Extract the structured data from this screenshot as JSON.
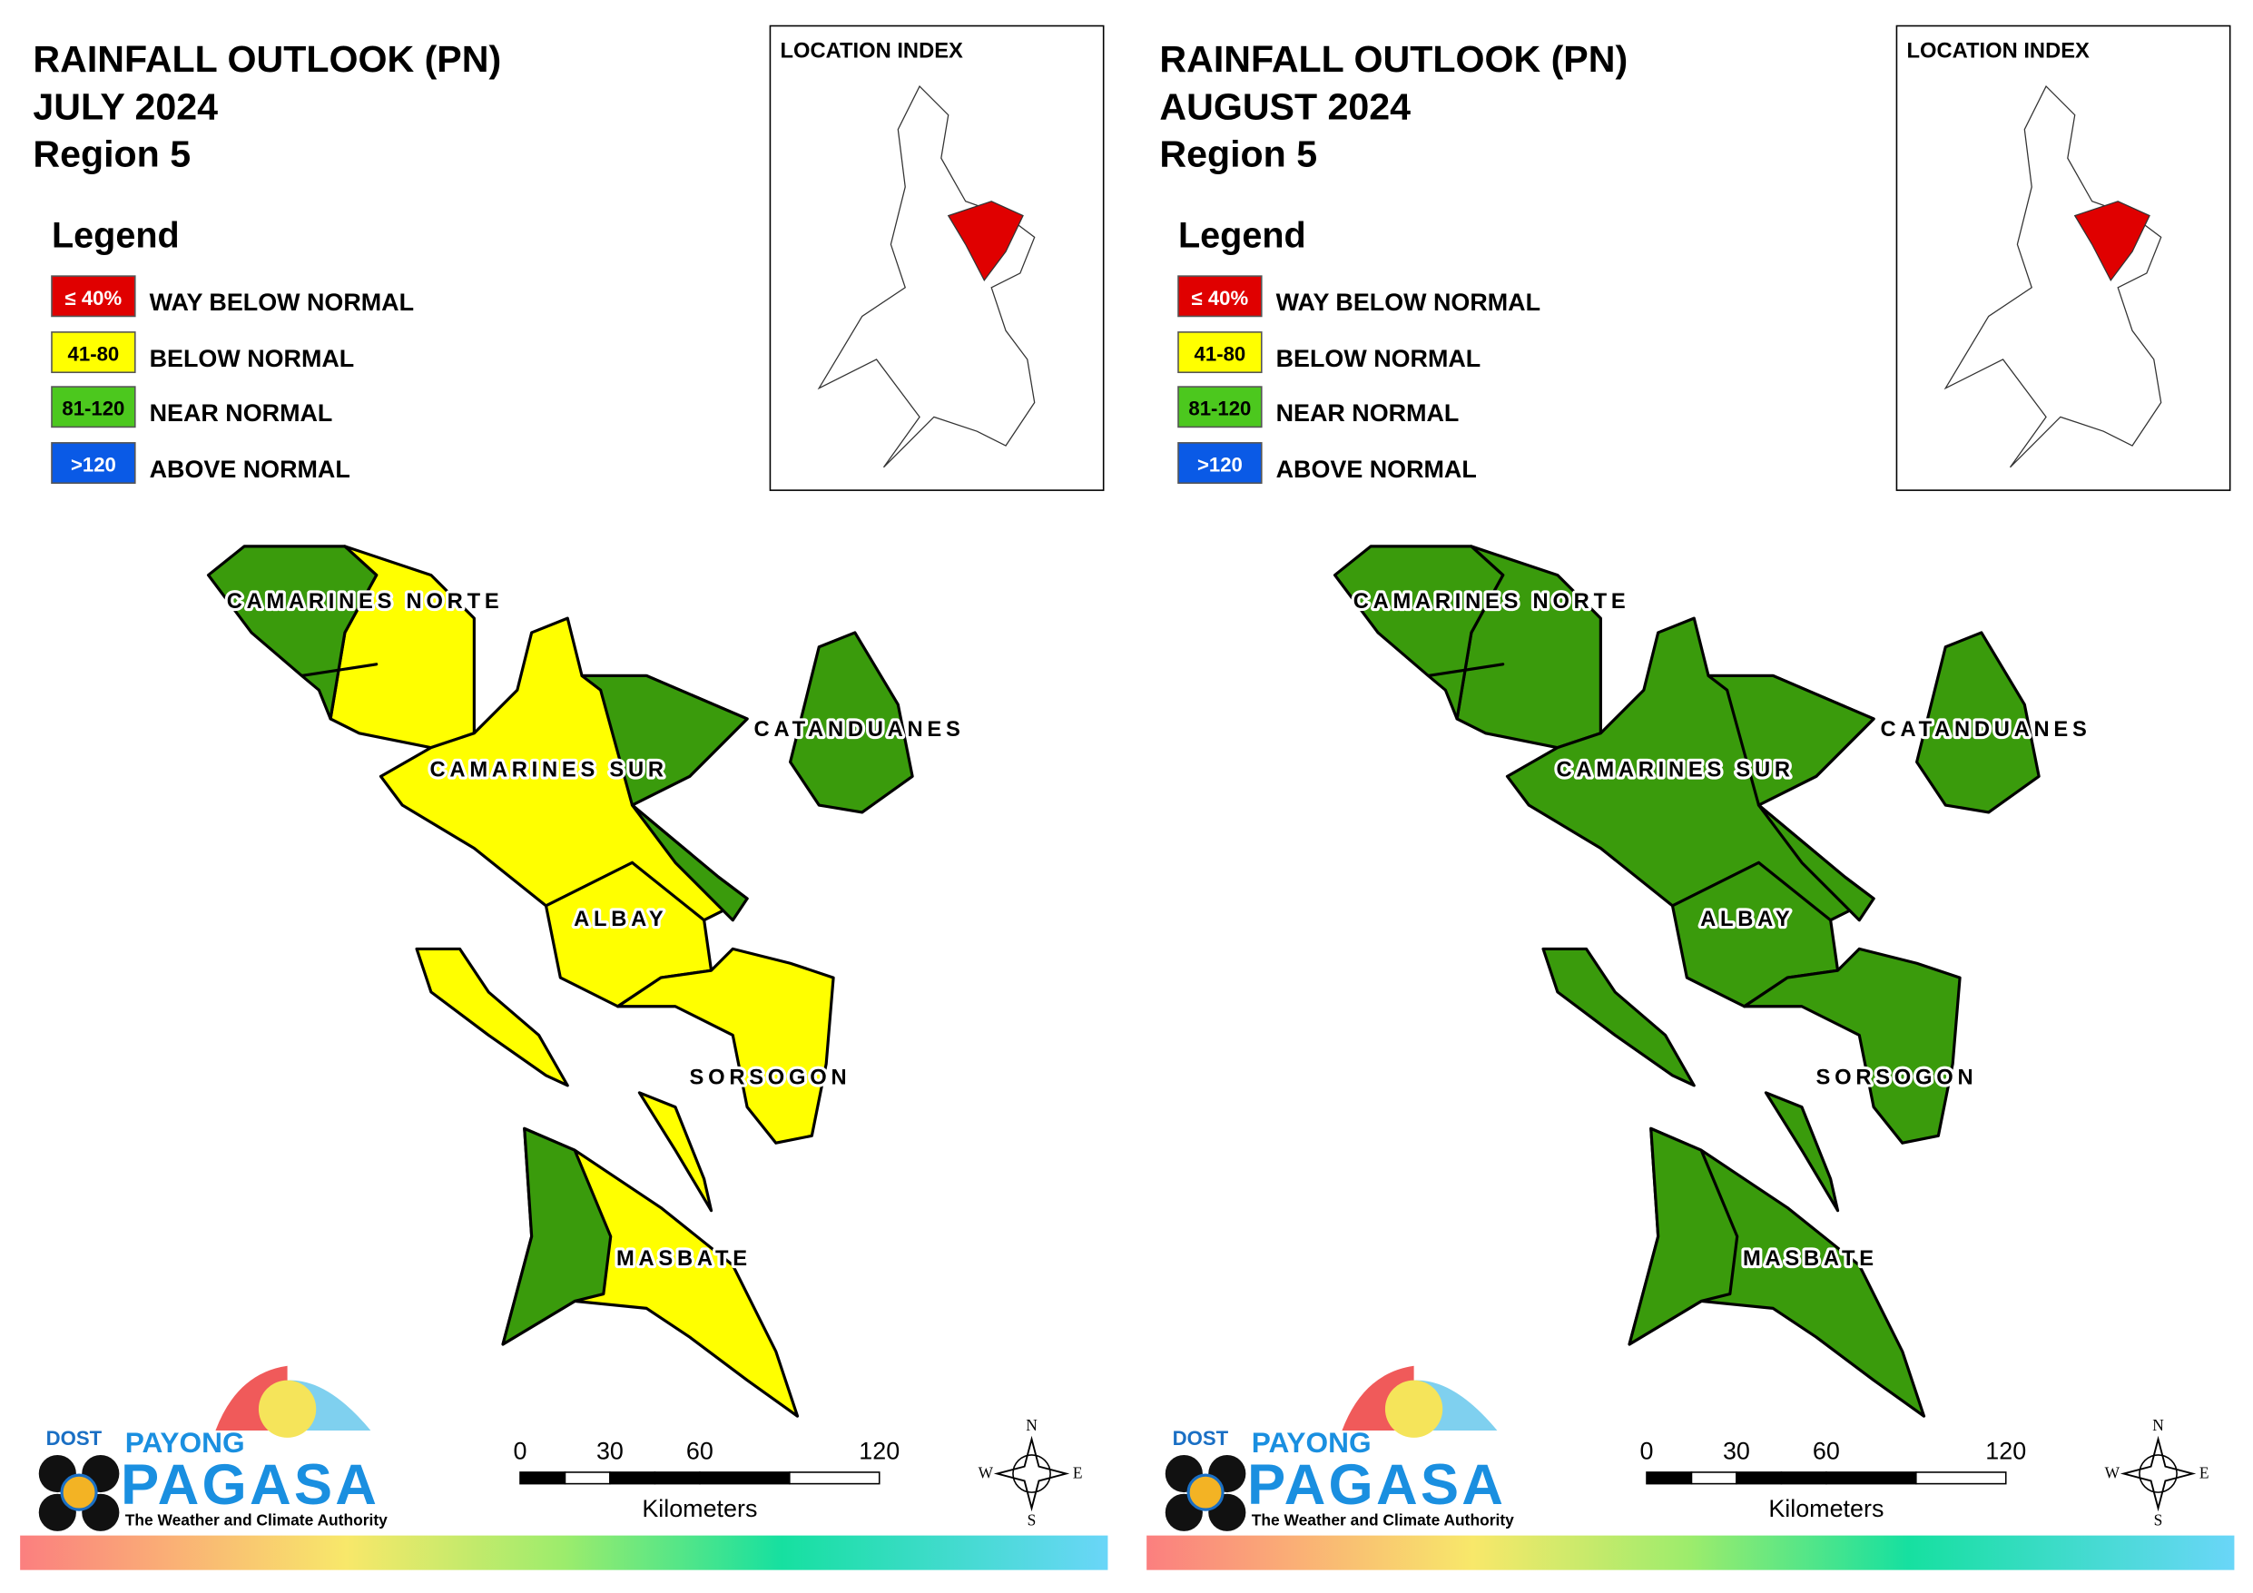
{
  "panels": [
    {
      "title": [
        "RAINFALL OUTLOOK (PN)",
        "JULY 2024",
        "Region 5"
      ],
      "legend_title": "Legend",
      "legend": [
        {
          "range": "≤ 40%",
          "label": "WAY BELOW NORMAL",
          "color": "#e00000"
        },
        {
          "range": "41-80",
          "label": "BELOW NORMAL",
          "color": "#ffff00"
        },
        {
          "range": "81-120",
          "label": "NEAR NORMAL",
          "color": "#4cc81e"
        },
        {
          "range": ">120",
          "label": "ABOVE NORMAL",
          "color": "#0a5ae6"
        }
      ],
      "location_index": "LOCATION INDEX",
      "provinces": [
        {
          "name": "CAMARINES NORTE",
          "colors": [
            "#ffff00",
            "#3a9b0c"
          ]
        },
        {
          "name": "CAMARINES SUR",
          "colors": [
            "#ffff00",
            "#3a9b0c"
          ]
        },
        {
          "name": "CATANDUANES",
          "colors": [
            "#3a9b0c"
          ]
        },
        {
          "name": "ALBAY",
          "colors": [
            "#ffff00"
          ]
        },
        {
          "name": "SORSOGON",
          "colors": [
            "#ffff00"
          ]
        },
        {
          "name": "MASBATE",
          "colors": [
            "#ffff00",
            "#3a9b0c",
            "#ffff00",
            "#ffff00"
          ]
        }
      ],
      "scale_bar": {
        "ticks": [
          0,
          30,
          60,
          120
        ],
        "unit": "Kilometers"
      },
      "compass": [
        "N",
        "E",
        "S",
        "W"
      ],
      "logo": {
        "dost": "DOST",
        "payong": "PAYONG",
        "pagasa": "PAGASA",
        "tagline": "The Weather and Climate Authority"
      }
    },
    {
      "title": [
        "RAINFALL OUTLOOK (PN)",
        "AUGUST 2024",
        "Region 5"
      ],
      "legend_title": "Legend",
      "legend": [
        {
          "range": "≤ 40%",
          "label": "WAY BELOW NORMAL",
          "color": "#e00000"
        },
        {
          "range": "41-80",
          "label": "BELOW NORMAL",
          "color": "#ffff00"
        },
        {
          "range": "81-120",
          "label": "NEAR NORMAL",
          "color": "#4cc81e"
        },
        {
          "range": ">120",
          "label": "ABOVE NORMAL",
          "color": "#0a5ae6"
        }
      ],
      "location_index": "LOCATION INDEX",
      "provinces": [
        {
          "name": "CAMARINES NORTE",
          "colors": [
            "#3a9b0c",
            "#3a9b0c"
          ]
        },
        {
          "name": "CAMARINES SUR",
          "colors": [
            "#3a9b0c",
            "#3a9b0c"
          ]
        },
        {
          "name": "CATANDUANES",
          "colors": [
            "#3a9b0c"
          ]
        },
        {
          "name": "ALBAY",
          "colors": [
            "#3a9b0c"
          ]
        },
        {
          "name": "SORSOGON",
          "colors": [
            "#3a9b0c"
          ]
        },
        {
          "name": "MASBATE",
          "colors": [
            "#3a9b0c",
            "#3a9b0c",
            "#3a9b0c",
            "#3a9b0c"
          ]
        }
      ],
      "scale_bar": {
        "ticks": [
          0,
          30,
          60,
          120
        ],
        "unit": "Kilometers"
      },
      "compass": [
        "N",
        "E",
        "S",
        "W"
      ],
      "logo": {
        "dost": "DOST",
        "payong": "PAYONG",
        "pagasa": "PAGASA",
        "tagline": "The Weather and Climate Authority"
      }
    }
  ]
}
